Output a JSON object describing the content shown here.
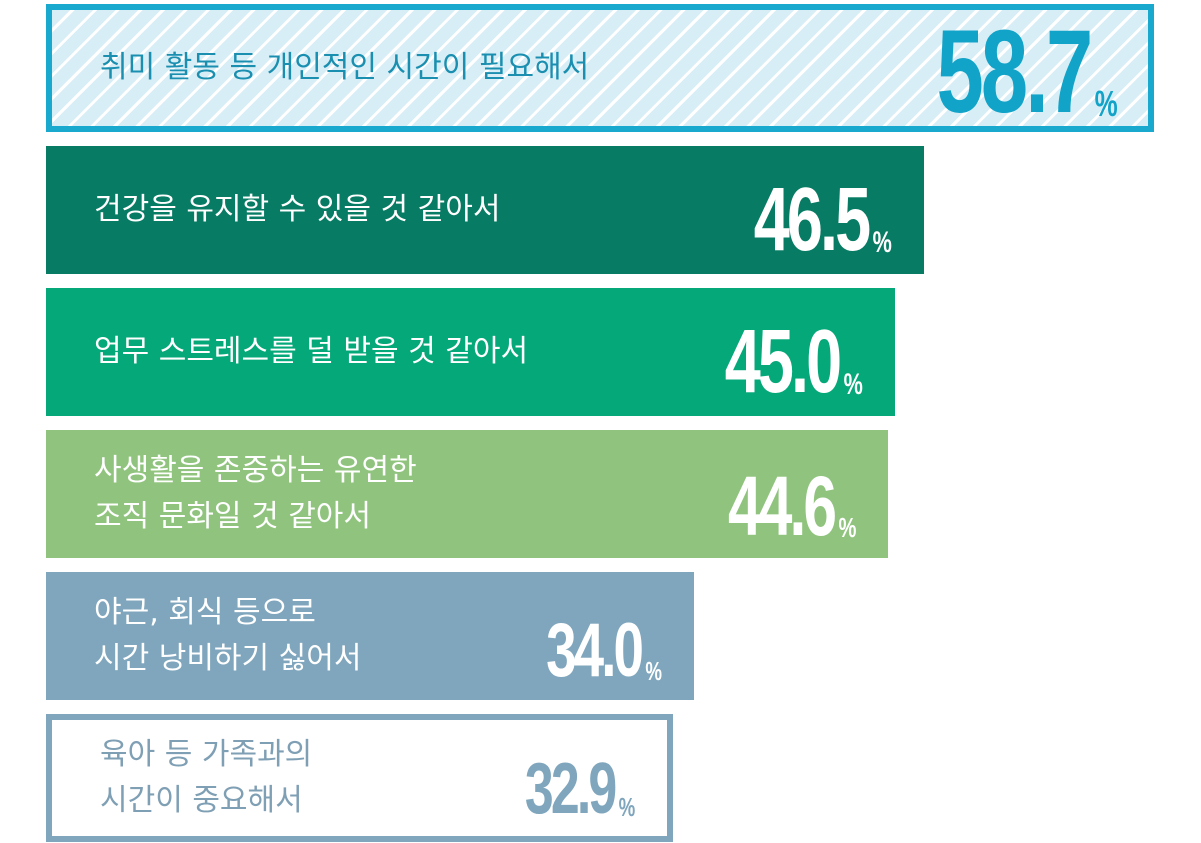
{
  "chart_data": {
    "type": "bar",
    "orientation": "horizontal",
    "unit": "%",
    "categories": [
      [
        "취미 활동 등 개인적인 시간이 필요해서"
      ],
      [
        "건강을 유지할 수 있을 것 같아서"
      ],
      [
        "업무 스트레스를 덜 받을 것 같아서"
      ],
      [
        "사생활을 존중하는 유연한",
        "조직 문화일 것 같아서"
      ],
      [
        "야근, 회식 등으로",
        "시간 낭비하기 싫어서"
      ],
      [
        "육아 등 가족과의",
        "시간이 중요해서"
      ]
    ],
    "values": [
      58.7,
      46.5,
      45.0,
      44.6,
      34.0,
      32.9
    ],
    "value_labels": [
      "58.7",
      "46.5",
      "45.0",
      "44.6",
      "34.0",
      "32.9"
    ],
    "colors": [
      {
        "fill": "hatched-light-blue",
        "border": "#19a9cf",
        "label": "#1a8fb0",
        "value": "#12a3c8"
      },
      {
        "fill": "#077b63",
        "border": "#077b63",
        "label": "#ffffff",
        "value": "#ffffff"
      },
      {
        "fill": "#05a878",
        "border": "#05a878",
        "label": "#ffffff",
        "value": "#ffffff"
      },
      {
        "fill": "#90c47e",
        "border": "#90c47e",
        "label": "#ffffff",
        "value": "#ffffff"
      },
      {
        "fill": "#7fa6bd",
        "border": "#7fa6bd",
        "label": "#ffffff",
        "value": "#ffffff"
      },
      {
        "fill": "#ffffff",
        "border": "#7fa6bd",
        "label": "#7f9fb4",
        "value": "#7fa6bd"
      }
    ]
  }
}
